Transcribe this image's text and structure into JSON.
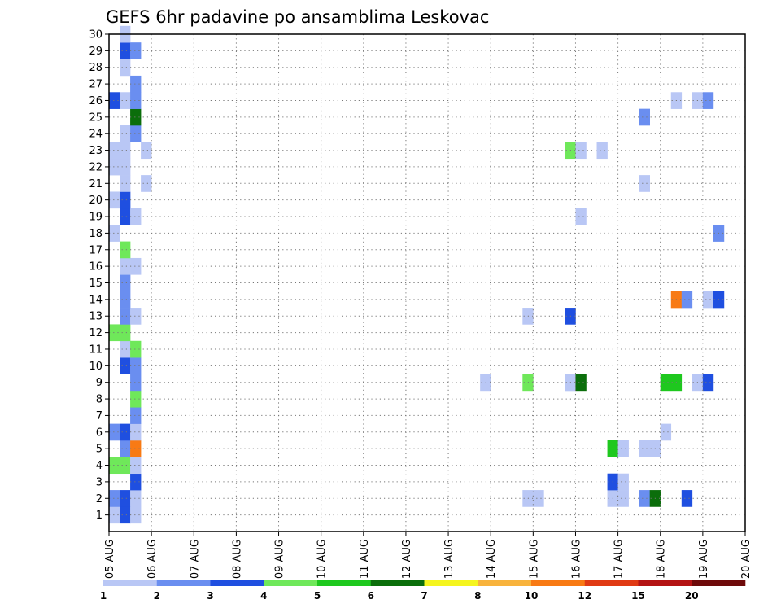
{
  "chart_data": {
    "type": "heatmap",
    "title": "GEFS 6hr padavine po ansamblima Leskovac",
    "xlabel": "",
    "ylabel": "",
    "x_tick_labels": [
      "05 AUG",
      "06 AUG",
      "07 AUG",
      "08 AUG",
      "09 AUG",
      "10 AUG",
      "11 AUG",
      "12 AUG",
      "13 AUG",
      "14 AUG",
      "15 AUG",
      "16 AUG",
      "17 AUG",
      "18 AUG",
      "19 AUG",
      "20 AUG"
    ],
    "y_tick_labels": [
      "1",
      "2",
      "3",
      "4",
      "5",
      "6",
      "7",
      "8",
      "9",
      "10",
      "11",
      "12",
      "13",
      "14",
      "15",
      "16",
      "17",
      "18",
      "19",
      "20",
      "21",
      "22",
      "23",
      "24",
      "25",
      "26",
      "27",
      "28",
      "29",
      "30"
    ],
    "x_range_days": [
      0,
      15
    ],
    "y_range_members": [
      0,
      30
    ],
    "time_step_hours": 6,
    "grid": true,
    "colorbar": {
      "labels": [
        "1",
        "2",
        "3",
        "4",
        "5",
        "6",
        "7",
        "8",
        "10",
        "12",
        "15",
        "20"
      ],
      "colors": [
        "#b9c7f5",
        "#6a8ef0",
        "#1f4fe0",
        "#6fe85a",
        "#1ec81e",
        "#0b6e0b",
        "#f5f51e",
        "#f8b33c",
        "#f87a14",
        "#e03a14",
        "#b41414",
        "#6e0a0a"
      ]
    },
    "cells": [
      {
        "member": 1,
        "day": 0,
        "slot": 0,
        "level": 1
      },
      {
        "member": 1,
        "day": 0,
        "slot": 1,
        "level": 3
      },
      {
        "member": 1,
        "day": 0,
        "slot": 2,
        "level": 1
      },
      {
        "member": 2,
        "day": 0,
        "slot": 0,
        "level": 2
      },
      {
        "member": 2,
        "day": 0,
        "slot": 1,
        "level": 3
      },
      {
        "member": 2,
        "day": 0,
        "slot": 2,
        "level": 1
      },
      {
        "member": 3,
        "day": 0,
        "slot": 2,
        "level": 3
      },
      {
        "member": 4,
        "day": 0,
        "slot": 0,
        "level": 4
      },
      {
        "member": 4,
        "day": 0,
        "slot": 1,
        "level": 4
      },
      {
        "member": 4,
        "day": 0,
        "slot": 2,
        "level": 1
      },
      {
        "member": 5,
        "day": 0,
        "slot": 1,
        "level": 2
      },
      {
        "member": 5,
        "day": 0,
        "slot": 2,
        "level": 9
      },
      {
        "member": 6,
        "day": 0,
        "slot": 0,
        "level": 2
      },
      {
        "member": 6,
        "day": 0,
        "slot": 1,
        "level": 3
      },
      {
        "member": 6,
        "day": 0,
        "slot": 2,
        "level": 1
      },
      {
        "member": 7,
        "day": 0,
        "slot": 2,
        "level": 2
      },
      {
        "member": 8,
        "day": 0,
        "slot": 2,
        "level": 4
      },
      {
        "member": 9,
        "day": 0,
        "slot": 2,
        "level": 2
      },
      {
        "member": 10,
        "day": 0,
        "slot": 1,
        "level": 3
      },
      {
        "member": 10,
        "day": 0,
        "slot": 2,
        "level": 2
      },
      {
        "member": 11,
        "day": 0,
        "slot": 1,
        "level": 1
      },
      {
        "member": 11,
        "day": 0,
        "slot": 2,
        "level": 4
      },
      {
        "member": 12,
        "day": 0,
        "slot": 0,
        "level": 4
      },
      {
        "member": 12,
        "day": 0,
        "slot": 1,
        "level": 4
      },
      {
        "member": 13,
        "day": 0,
        "slot": 1,
        "level": 2
      },
      {
        "member": 13,
        "day": 0,
        "slot": 2,
        "level": 1
      },
      {
        "member": 14,
        "day": 0,
        "slot": 1,
        "level": 2
      },
      {
        "member": 15,
        "day": 0,
        "slot": 1,
        "level": 2
      },
      {
        "member": 16,
        "day": 0,
        "slot": 1,
        "level": 1
      },
      {
        "member": 16,
        "day": 0,
        "slot": 2,
        "level": 1
      },
      {
        "member": 17,
        "day": 0,
        "slot": 1,
        "level": 4
      },
      {
        "member": 18,
        "day": 0,
        "slot": 0,
        "level": 1
      },
      {
        "member": 19,
        "day": 0,
        "slot": 1,
        "level": 3
      },
      {
        "member": 19,
        "day": 0,
        "slot": 2,
        "level": 1
      },
      {
        "member": 20,
        "day": 0,
        "slot": 0,
        "level": 1
      },
      {
        "member": 20,
        "day": 0,
        "slot": 1,
        "level": 3
      },
      {
        "member": 21,
        "day": 0,
        "slot": 1,
        "level": 1
      },
      {
        "member": 21,
        "day": 0,
        "slot": 3,
        "level": 1
      },
      {
        "member": 22,
        "day": 0,
        "slot": 0,
        "level": 1
      },
      {
        "member": 22,
        "day": 0,
        "slot": 1,
        "level": 1
      },
      {
        "member": 23,
        "day": 0,
        "slot": 0,
        "level": 1
      },
      {
        "member": 23,
        "day": 0,
        "slot": 1,
        "level": 1
      },
      {
        "member": 23,
        "day": 0,
        "slot": 3,
        "level": 1
      },
      {
        "member": 24,
        "day": 0,
        "slot": 1,
        "level": 1
      },
      {
        "member": 24,
        "day": 0,
        "slot": 2,
        "level": 2
      },
      {
        "member": 25,
        "day": 0,
        "slot": 2,
        "level": 6
      },
      {
        "member": 26,
        "day": 0,
        "slot": 0,
        "level": 3
      },
      {
        "member": 26,
        "day": 0,
        "slot": 1,
        "level": 1
      },
      {
        "member": 26,
        "day": 0,
        "slot": 2,
        "level": 2
      },
      {
        "member": 27,
        "day": 0,
        "slot": 2,
        "level": 2
      },
      {
        "member": 28,
        "day": 0,
        "slot": 1,
        "level": 1
      },
      {
        "member": 29,
        "day": 0,
        "slot": 1,
        "level": 3
      },
      {
        "member": 29,
        "day": 0,
        "slot": 2,
        "level": 2
      },
      {
        "member": 30,
        "day": 0,
        "slot": 1,
        "level": 1
      },
      {
        "member": 9,
        "day": 8,
        "slot": 3,
        "level": 1
      },
      {
        "member": 2,
        "day": 9,
        "slot": 3,
        "level": 1
      },
      {
        "member": 2,
        "day": 10,
        "slot": 0,
        "level": 1
      },
      {
        "member": 9,
        "day": 9,
        "slot": 3,
        "level": 4
      },
      {
        "member": 13,
        "day": 9,
        "slot": 3,
        "level": 1
      },
      {
        "member": 9,
        "day": 10,
        "slot": 3,
        "level": 1
      },
      {
        "member": 9,
        "day": 10,
        "slot": 3,
        "level": 1
      },
      {
        "member": 9,
        "day": 11,
        "slot": 0,
        "level": 6
      },
      {
        "member": 13,
        "day": 10,
        "slot": 3,
        "level": 3
      },
      {
        "member": 23,
        "day": 10,
        "slot": 3,
        "level": 4
      },
      {
        "member": 23,
        "day": 11,
        "slot": 0,
        "level": 1
      },
      {
        "member": 23,
        "day": 11,
        "slot": 2,
        "level": 1
      },
      {
        "member": 19,
        "day": 11,
        "slot": 0,
        "level": 1
      },
      {
        "member": 2,
        "day": 11,
        "slot": 3,
        "level": 1
      },
      {
        "member": 2,
        "day": 12,
        "slot": 0,
        "level": 1
      },
      {
        "member": 3,
        "day": 11,
        "slot": 3,
        "level": 3
      },
      {
        "member": 3,
        "day": 12,
        "slot": 0,
        "level": 1
      },
      {
        "member": 5,
        "day": 11,
        "slot": 3,
        "level": 5
      },
      {
        "member": 5,
        "day": 12,
        "slot": 0,
        "level": 1
      },
      {
        "member": 5,
        "day": 12,
        "slot": 2,
        "level": 1
      },
      {
        "member": 5,
        "day": 12,
        "slot": 3,
        "level": 1
      },
      {
        "member": 2,
        "day": 12,
        "slot": 2,
        "level": 2
      },
      {
        "member": 2,
        "day": 12,
        "slot": 3,
        "level": 6
      },
      {
        "member": 25,
        "day": 12,
        "slot": 2,
        "level": 2
      },
      {
        "member": 21,
        "day": 12,
        "slot": 2,
        "level": 1
      },
      {
        "member": 9,
        "day": 13,
        "slot": 0,
        "level": 5
      },
      {
        "member": 9,
        "day": 13,
        "slot": 1,
        "level": 5
      },
      {
        "member": 6,
        "day": 13,
        "slot": 0,
        "level": 1
      },
      {
        "member": 14,
        "day": 13,
        "slot": 1,
        "level": 9
      },
      {
        "member": 14,
        "day": 13,
        "slot": 2,
        "level": 2
      },
      {
        "member": 2,
        "day": 13,
        "slot": 2,
        "level": 3
      },
      {
        "member": 26,
        "day": 13,
        "slot": 1,
        "level": 1
      },
      {
        "member": 9,
        "day": 13,
        "slot": 3,
        "level": 1
      },
      {
        "member": 9,
        "day": 14,
        "slot": 0,
        "level": 3
      },
      {
        "member": 26,
        "day": 13,
        "slot": 3,
        "level": 1
      },
      {
        "member": 26,
        "day": 14,
        "slot": 0,
        "level": 2
      },
      {
        "member": 14,
        "day": 14,
        "slot": 0,
        "level": 1
      },
      {
        "member": 14,
        "day": 14,
        "slot": 1,
        "level": 3
      },
      {
        "member": 18,
        "day": 14,
        "slot": 1,
        "level": 2
      }
    ]
  }
}
